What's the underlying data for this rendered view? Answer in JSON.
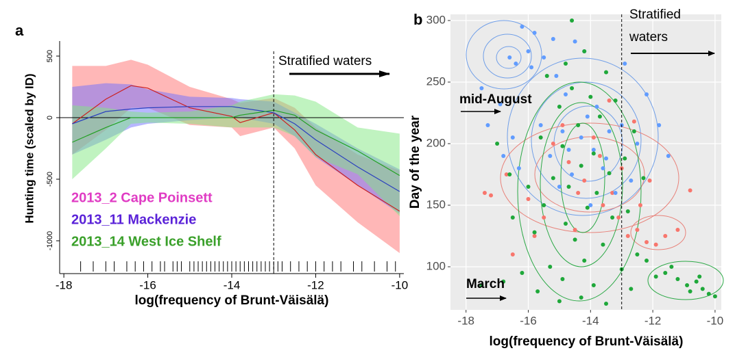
{
  "chart_data": [
    {
      "type": "band-line",
      "panel_label": "a",
      "x_label": "log(frequency of Brunt-Väisälä)",
      "y_label": "Hunting time (scaled by ID)",
      "annotation": "Stratified waters",
      "x": [
        -17.8,
        -17,
        -16.4,
        -16,
        -15,
        -14,
        -13.8,
        -13,
        -12.5,
        -12,
        -11,
        -10
      ],
      "series": [
        {
          "name": "2013_2 Cape Poinsett",
          "color": "#cc1f1f",
          "band_color": "#ff6f6f",
          "legend_color": "#e03cc4",
          "values": [
            -50,
            150,
            260,
            240,
            80,
            10,
            -40,
            40,
            -100,
            -300,
            -550,
            -760
          ],
          "upper": [
            420,
            420,
            470,
            430,
            250,
            150,
            120,
            160,
            80,
            -80,
            -300,
            -430
          ],
          "lower": [
            -300,
            -100,
            80,
            80,
            -60,
            -80,
            -150,
            -80,
            -250,
            -550,
            -850,
            -1100
          ]
        },
        {
          "name": "2013_11 Mackenzie",
          "color": "#2a3fbf",
          "band_color": "#7070ff",
          "legend_color": "#5a22d8",
          "values": [
            -50,
            50,
            70,
            80,
            90,
            90,
            80,
            40,
            -50,
            -180,
            -400,
            -600
          ],
          "upper": [
            250,
            280,
            270,
            230,
            170,
            160,
            150,
            130,
            40,
            -50,
            -250,
            -420
          ],
          "lower": [
            -300,
            -180,
            -80,
            -50,
            -20,
            0,
            0,
            -50,
            -150,
            -320,
            -550,
            -780
          ]
        },
        {
          "name": "2013_14 West Ice Shelf",
          "color": "#22a022",
          "band_color": "#82e882",
          "legend_color": "#3aa02a",
          "values": [
            -200,
            -80,
            0,
            0,
            0,
            0,
            20,
            60,
            20,
            -100,
            -270,
            -470
          ],
          "upper": [
            100,
            80,
            50,
            40,
            50,
            100,
            130,
            190,
            180,
            130,
            -80,
            -130
          ],
          "lower": [
            -500,
            -250,
            -50,
            -40,
            -50,
            -80,
            -80,
            -80,
            -150,
            -320,
            -460,
            -800
          ]
        }
      ],
      "hline": 0,
      "vline": -13,
      "rug": [
        -17.6,
        -17.3,
        -17.0,
        -16.8,
        -16.5,
        -16.3,
        -16.1,
        -15.9,
        -15.7,
        -15.6,
        -15.4,
        -15.3,
        -15.2,
        -15.0,
        -14.9,
        -14.8,
        -14.7,
        -14.6,
        -14.5,
        -14.4,
        -14.3,
        -14.2,
        -14.1,
        -14.0,
        -13.9,
        -13.8,
        -13.7,
        -13.6,
        -13.5,
        -13.4,
        -13.3,
        -13.2,
        -13.1,
        -13.0,
        -12.9,
        -12.8,
        -12.6,
        -12.4,
        -12.2,
        -12.0,
        -11.8,
        -11.6,
        -11.4,
        -11.1,
        -10.9,
        -10.6,
        -10.3,
        -10.1
      ],
      "xlim": [
        -18.1,
        -9.9
      ],
      "ylim": [
        -1100,
        600
      ],
      "xticks": [
        -18,
        -16,
        -14,
        -12,
        -10
      ],
      "yticks": [
        -1000,
        -500,
        0,
        500
      ]
    },
    {
      "type": "scatter",
      "panel_label": "b",
      "x_label": "log(frequency of Brunt-Väisälä)",
      "y_label": "Day of the year",
      "annotation": [
        "Stratified",
        "waters"
      ],
      "marks": [
        "mid-August",
        "March"
      ],
      "vline": -13,
      "grid": true,
      "xlim": [
        -18.5,
        -9.8
      ],
      "ylim": [
        65,
        305
      ],
      "xticks": [
        -18,
        -16,
        -14,
        -12,
        -10
      ],
      "yticks": [
        100,
        150,
        200,
        250,
        300
      ],
      "series": [
        {
          "color": "#f8766d",
          "x": [
            -17.4,
            -17.2,
            -16.7,
            -16.0,
            -15.5,
            -15.2,
            -14.7,
            -14.2,
            -13.9,
            -13.6,
            -13.3,
            -13.0,
            -12.8,
            -12.5,
            -12.2,
            -11.9,
            -11.6,
            -11.2,
            -12.6,
            -13.4,
            -12.4,
            -14.5,
            -15.8,
            -16.5,
            -14.9,
            -10.8,
            -12.1,
            -13.7,
            -14.4,
            -13.1
          ],
          "values": [
            160,
            158,
            175,
            155,
            140,
            200,
            185,
            170,
            205,
            150,
            160,
            180,
            125,
            130,
            120,
            118,
            125,
            130,
            218,
            235,
            150,
            130,
            125,
            110,
            215,
            162,
            170,
            190,
            160,
            140
          ]
        },
        {
          "color": "#619cff",
          "x": [
            -16.2,
            -15.8,
            -15.2,
            -16.6,
            -16.4,
            -15.9,
            -16.0,
            -15.5,
            -14.5,
            -14.2,
            -15.1,
            -14.8,
            -16.9,
            -17.3,
            -16.5,
            -15.6,
            -14.9,
            -14.3,
            -13.9,
            -13.4,
            -13.0,
            -12.5,
            -11.8,
            -12.2,
            -13.6,
            -14.6,
            -15.3,
            -16.3,
            -13.2,
            -12.7,
            -14.0,
            -15.0,
            -17.5,
            -13.8,
            -12.9,
            -11.5,
            -14.7,
            -13.5,
            -14.1,
            -16.8
          ],
          "values": [
            295,
            290,
            285,
            270,
            265,
            262,
            275,
            270,
            283,
            275,
            255,
            240,
            232,
            215,
            205,
            215,
            210,
            205,
            195,
            210,
            215,
            200,
            215,
            240,
            180,
            175,
            190,
            180,
            160,
            170,
            150,
            165,
            245,
            230,
            265,
            190,
            195,
            188,
            222,
            190
          ]
        },
        {
          "color": "#1fa83a",
          "x": [
            -15.4,
            -14.8,
            -14.2,
            -13.5,
            -14.6,
            -14.0,
            -13.2,
            -15.0,
            -13.7,
            -14.4,
            -12.6,
            -15.6,
            -14.9,
            -13.9,
            -12.9,
            -14.3,
            -13.4,
            -15.2,
            -14.7,
            -13.8,
            -12.3,
            -16.0,
            -15.5,
            -14.1,
            -13.3,
            -14.8,
            -12.8,
            -16.5,
            -15.8,
            -14.5,
            -13.6,
            -12.5,
            -14.2,
            -15.3,
            -16.2,
            -13.0,
            -14.9,
            -13.9,
            -15.7,
            -14.3,
            -12.7,
            -16.8,
            -17.5,
            -15.0,
            -11.6,
            -11.2,
            -10.9,
            -10.6,
            -10.4,
            -10.2,
            -10.0,
            -10.8,
            -11.4,
            -11.9,
            -10.5,
            -12.2,
            -16.6,
            -17.0,
            -13.5,
            -14.6
          ],
          "values": [
            255,
            265,
            275,
            258,
            245,
            238,
            235,
            230,
            222,
            215,
            210,
            205,
            198,
            192,
            188,
            182,
            176,
            172,
            165,
            160,
            172,
            165,
            150,
            148,
            140,
            135,
            145,
            140,
            128,
            122,
            118,
            110,
            105,
            100,
            95,
            98,
            90,
            85,
            80,
            75,
            82,
            88,
            85,
            72,
            95,
            90,
            85,
            88,
            82,
            78,
            76,
            80,
            100,
            92,
            92,
            105,
            175,
            200,
            70,
            300
          ]
        }
      ]
    }
  ]
}
